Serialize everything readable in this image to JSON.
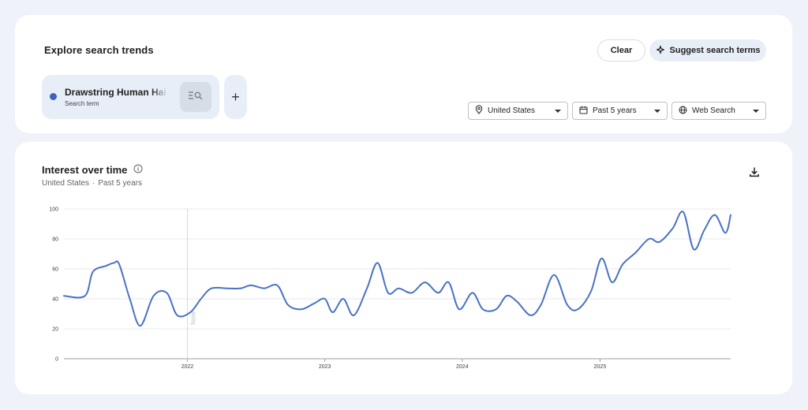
{
  "explore": {
    "title": "Explore search trends",
    "clear_label": "Clear",
    "suggest_label": "Suggest search terms",
    "term": {
      "name": "Drawstring Human Hair",
      "type": "Search term",
      "color": "#3d63b8"
    },
    "add_symbol": "+",
    "filters": {
      "geo": "United States",
      "time": "Past 5 years",
      "property": "Web Search"
    }
  },
  "interest": {
    "title": "Interest over time",
    "subtitle_geo": "United States",
    "subtitle_sep": "·",
    "subtitle_time": "Past 5 years"
  },
  "chart_data": {
    "type": "line",
    "title": "Interest over time",
    "ylim": [
      0,
      100
    ],
    "y_ticks": [
      "0",
      "20",
      "40",
      "60",
      "80",
      "100"
    ],
    "x_tick_labels": [
      "2022",
      "2023",
      "2024",
      "2025"
    ],
    "x_ticks": [
      "2022-01-01",
      "2023-01-01",
      "2024-01-01",
      "2025-01-01"
    ],
    "x_range": [
      "2021-02-07",
      "2025-12-14"
    ],
    "grid": true,
    "line_color": "#4a72c4",
    "annotation": {
      "x": "2022-01-01",
      "label": "Note"
    },
    "series": [
      {
        "name": "Drawstring Human Hair",
        "points": [
          [
            "2021-02-07",
            42
          ],
          [
            "2021-04-04",
            42
          ],
          [
            "2021-04-25",
            58
          ],
          [
            "2021-05-30",
            62
          ],
          [
            "2021-06-20",
            64
          ],
          [
            "2021-07-04",
            63
          ],
          [
            "2021-08-01",
            40
          ],
          [
            "2021-08-29",
            22
          ],
          [
            "2021-10-03",
            42
          ],
          [
            "2021-11-07",
            44
          ],
          [
            "2021-12-05",
            29
          ],
          [
            "2022-01-09",
            31
          ],
          [
            "2022-02-06",
            40
          ],
          [
            "2022-03-06",
            47
          ],
          [
            "2022-04-17",
            47
          ],
          [
            "2022-05-22",
            47
          ],
          [
            "2022-06-19",
            49
          ],
          [
            "2022-07-24",
            47
          ],
          [
            "2022-08-28",
            49
          ],
          [
            "2022-09-25",
            36
          ],
          [
            "2022-10-30",
            33
          ],
          [
            "2022-12-04",
            37
          ],
          [
            "2023-01-01",
            40
          ],
          [
            "2023-01-22",
            31
          ],
          [
            "2023-02-19",
            40
          ],
          [
            "2023-03-19",
            29
          ],
          [
            "2023-04-23",
            47
          ],
          [
            "2023-05-21",
            64
          ],
          [
            "2023-06-18",
            44
          ],
          [
            "2023-07-16",
            47
          ],
          [
            "2023-08-20",
            44
          ],
          [
            "2023-09-24",
            51
          ],
          [
            "2023-10-29",
            44
          ],
          [
            "2023-11-26",
            51
          ],
          [
            "2023-12-24",
            33
          ],
          [
            "2024-01-28",
            44
          ],
          [
            "2024-02-25",
            33
          ],
          [
            "2024-03-31",
            33
          ],
          [
            "2024-04-28",
            42
          ],
          [
            "2024-05-26",
            38
          ],
          [
            "2024-06-30",
            29
          ],
          [
            "2024-07-28",
            36
          ],
          [
            "2024-09-01",
            56
          ],
          [
            "2024-10-06",
            36
          ],
          [
            "2024-11-03",
            33
          ],
          [
            "2024-12-08",
            45
          ],
          [
            "2025-01-05",
            67
          ],
          [
            "2025-02-02",
            51
          ],
          [
            "2025-03-02",
            63
          ],
          [
            "2025-04-06",
            71
          ],
          [
            "2025-05-11",
            80
          ],
          [
            "2025-06-08",
            78
          ],
          [
            "2025-07-13",
            87
          ],
          [
            "2025-08-10",
            98
          ],
          [
            "2025-09-07",
            73
          ],
          [
            "2025-10-05",
            86
          ],
          [
            "2025-11-02",
            96
          ],
          [
            "2025-11-30",
            84
          ],
          [
            "2025-12-14",
            96
          ]
        ]
      }
    ]
  }
}
